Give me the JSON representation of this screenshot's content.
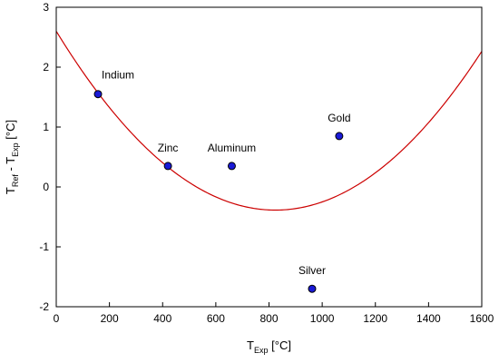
{
  "chart_data": {
    "type": "scatter",
    "title": "",
    "xlabel": {
      "main": "T",
      "sub": "Exp",
      "unit": " [°C]"
    },
    "ylabel": {
      "main": "T",
      "sub1": "Ref",
      "mid": " - T",
      "sub2": "Exp",
      "unit": " [°C]"
    },
    "xlim": [
      0,
      1600
    ],
    "ylim": [
      -2,
      3
    ],
    "xticks": [
      0,
      200,
      400,
      600,
      800,
      1000,
      1200,
      1400,
      1600
    ],
    "yticks": [
      -2,
      -1,
      0,
      1,
      2,
      3
    ],
    "grid": false,
    "points": [
      {
        "label": "Indium",
        "x": 157,
        "y": 1.55
      },
      {
        "label": "Zinc",
        "x": 420,
        "y": 0.35
      },
      {
        "label": "Aluminum",
        "x": 660,
        "y": 0.35
      },
      {
        "label": "Gold",
        "x": 1064,
        "y": 0.85
      },
      {
        "label": "Silver",
        "x": 962,
        "y": -1.7
      }
    ],
    "fit_curve": {
      "type": "quadratic",
      "coefficients": [
        2.6,
        -0.00725,
        4.4e-06
      ],
      "color": "#cc0000"
    },
    "marker_color": "#1a1ad6",
    "marker_edge": "#000000"
  }
}
